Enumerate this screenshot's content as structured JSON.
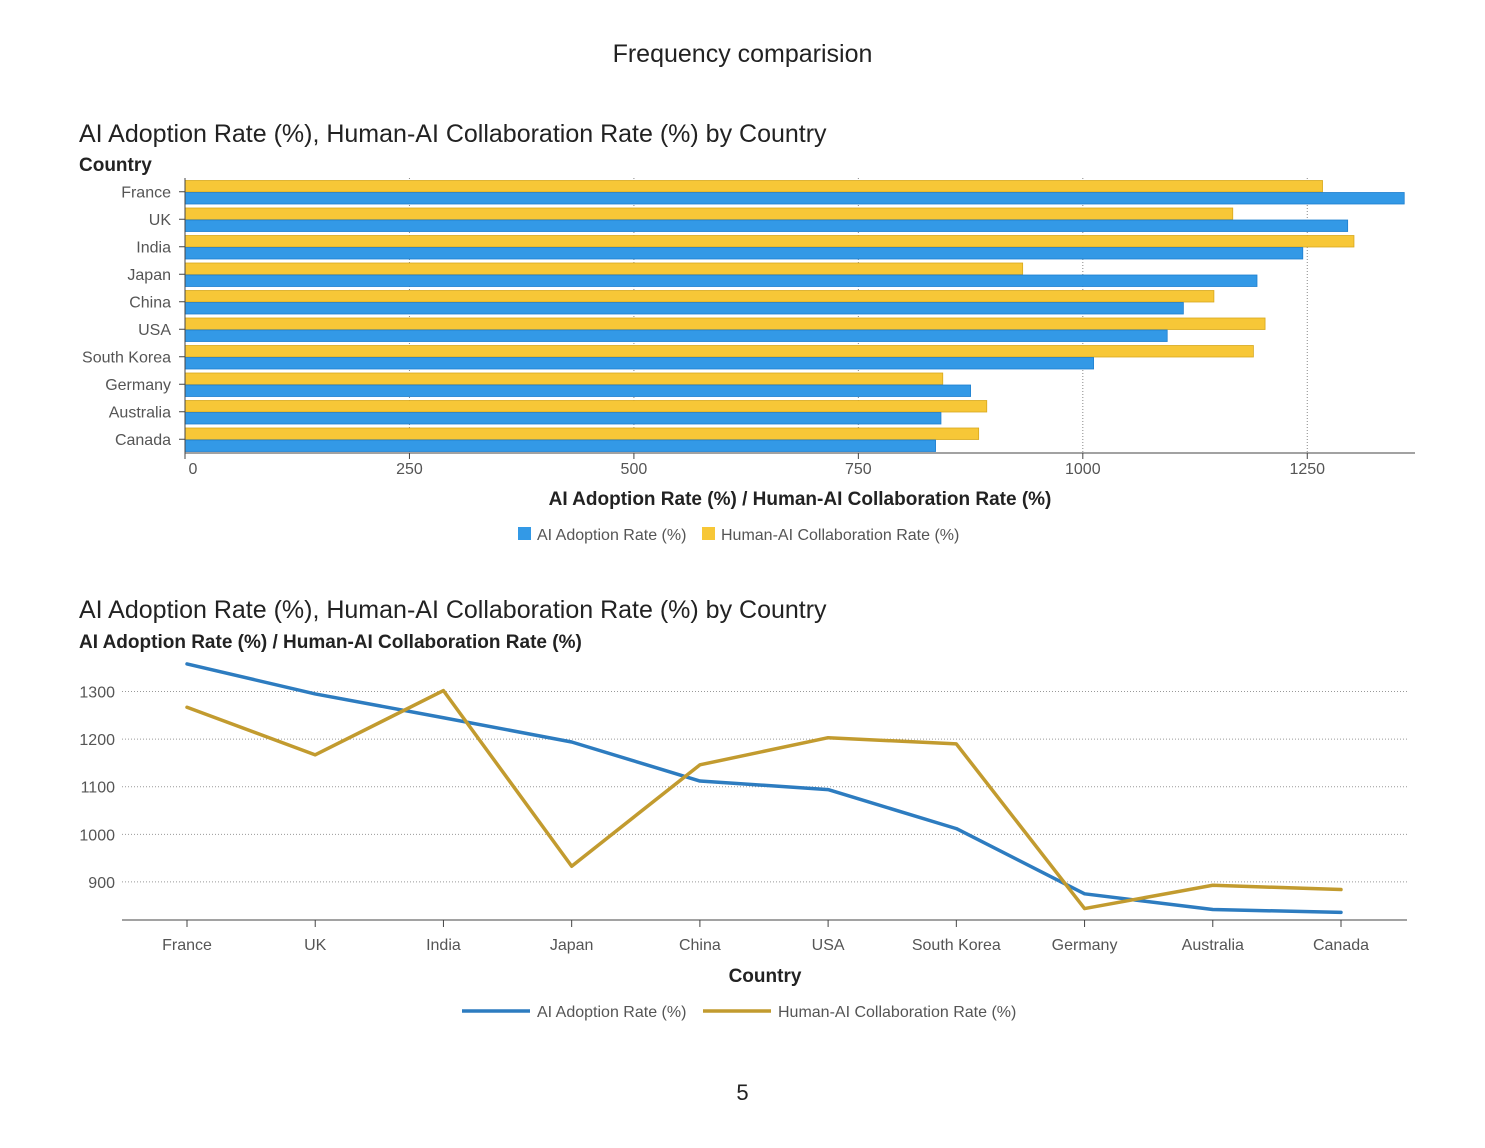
{
  "page_title": "Frequency comparision",
  "page_number": "5",
  "colors": {
    "bar_adoption": "#3399e6",
    "bar_collab": "#f7c737",
    "line_adoption": "#2d7cc0",
    "line_collab": "#c29b2f"
  },
  "chart_data": [
    {
      "type": "bar",
      "orientation": "horizontal",
      "title": "AI Adoption Rate (%), Human-AI Collaboration Rate (%) by Country",
      "category_axis_label": "Country",
      "xlabel": "AI Adoption Rate (%) / Human-AI Collaboration Rate (%)",
      "categories": [
        "France",
        "UK",
        "India",
        "Japan",
        "China",
        "USA",
        "South Korea",
        "Germany",
        "Australia",
        "Canada"
      ],
      "xlim": [
        0,
        1370
      ],
      "xticks": [
        0,
        250,
        500,
        750,
        1000,
        1250
      ],
      "grid": "vertical-dotted",
      "legend_position": "bottom-center",
      "series": [
        {
          "name": "AI Adoption Rate (%)",
          "values": [
            1358,
            1295,
            1245,
            1194,
            1112,
            1094,
            1012,
            875,
            842,
            836
          ]
        },
        {
          "name": "Human-AI Collaboration Rate (%)",
          "values": [
            1267,
            1167,
            1302,
            933,
            1146,
            1203,
            1190,
            844,
            893,
            884
          ]
        }
      ]
    },
    {
      "type": "line",
      "title": "AI Adoption Rate (%), Human-AI Collaboration Rate (%) by Country",
      "ylabel": "AI Adoption Rate (%) / Human-AI Collaboration Rate (%)",
      "xlabel": "Country",
      "categories": [
        "France",
        "UK",
        "India",
        "Japan",
        "China",
        "USA",
        "South Korea",
        "Germany",
        "Australia",
        "Canada"
      ],
      "ylim": [
        820,
        1360
      ],
      "yticks": [
        900,
        1000,
        1100,
        1200,
        1300
      ],
      "grid": "horizontal-dotted",
      "legend_position": "bottom-center",
      "series": [
        {
          "name": "AI Adoption Rate (%)",
          "values": [
            1358,
            1295,
            1245,
            1194,
            1112,
            1094,
            1012,
            875,
            842,
            836
          ]
        },
        {
          "name": "Human-AI Collaboration Rate (%)",
          "values": [
            1267,
            1167,
            1302,
            933,
            1146,
            1203,
            1190,
            844,
            893,
            884
          ]
        }
      ]
    }
  ]
}
